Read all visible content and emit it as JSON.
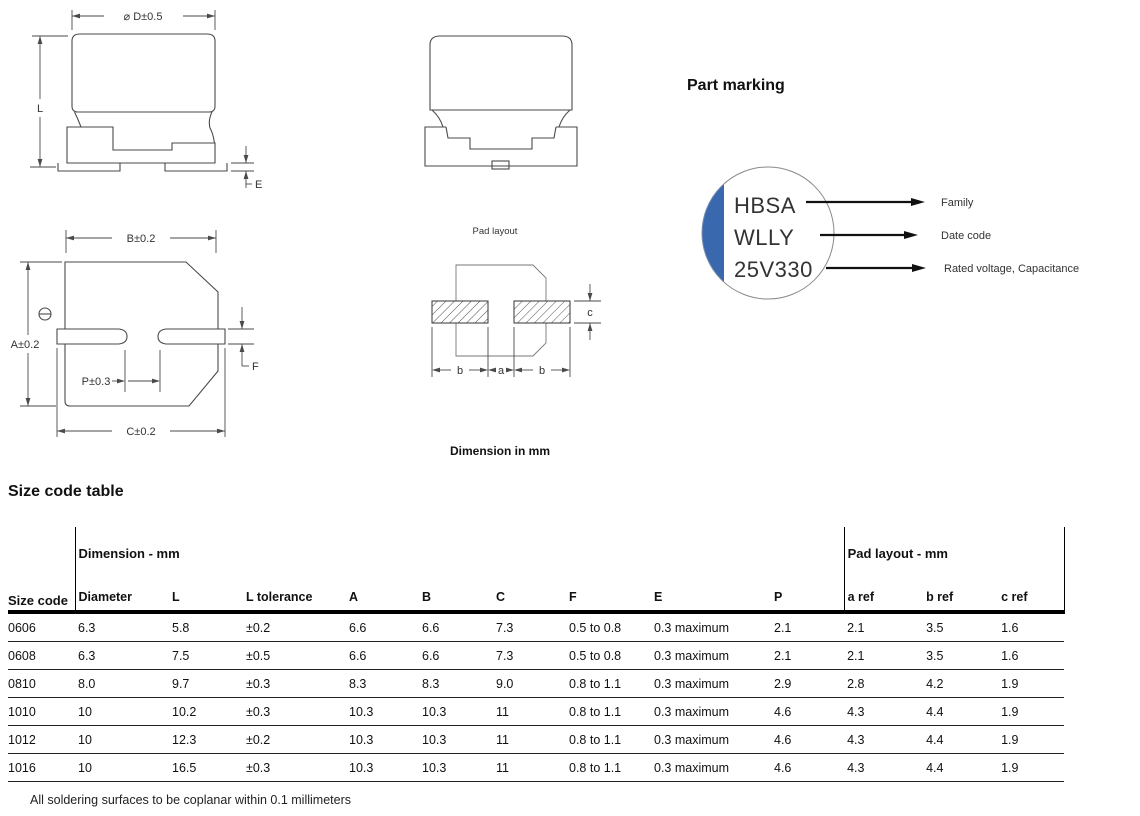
{
  "page": {
    "footnote": "All soldering surfaces to be coplanar within 0.1 millimeters",
    "dimension_note": "Dimension in mm"
  },
  "drawings": {
    "side_view": {
      "dim_diameter": "⌀ D±0.5",
      "dim_length": "L",
      "dim_e": "E"
    },
    "bottom_view": {
      "dim_b": "B±0.2",
      "dim_a": "A±0.2",
      "dim_p": "P±0.3",
      "dim_c": "C±0.2",
      "dim_f": "F",
      "polarity_symbol": "minus-in-circle"
    },
    "pad_layout": {
      "title": "Pad layout",
      "dim_b1": "b",
      "dim_a": "a",
      "dim_b2": "b",
      "dim_c": "c"
    }
  },
  "part_marking": {
    "title": "Part marking",
    "line1": "HBSA",
    "line2": "WLLY",
    "line3": "25V330",
    "callout1": "Family",
    "callout2": "Date code",
    "callout3": "Rated voltage, Capacitance",
    "marking_color": "#3a68ae"
  },
  "size_table": {
    "title": "Size code table",
    "group_dimension": "Dimension - mm",
    "group_pad": "Pad layout - mm",
    "col_size_code": "Size code",
    "columns": [
      "Diameter",
      "L",
      "L tolerance",
      "A",
      "B",
      "C",
      "F",
      "E",
      "P",
      "a ref",
      "b ref",
      "c ref"
    ],
    "rows": [
      [
        "0606",
        "6.3",
        "5.8",
        "±0.2",
        "6.6",
        "6.6",
        "7.3",
        "0.5 to 0.8",
        "0.3 maximum",
        "2.1",
        "2.1",
        "3.5",
        "1.6"
      ],
      [
        "0608",
        "6.3",
        "7.5",
        "±0.5",
        "6.6",
        "6.6",
        "7.3",
        "0.5 to 0.8",
        "0.3 maximum",
        "2.1",
        "2.1",
        "3.5",
        "1.6"
      ],
      [
        "0810",
        "8.0",
        "9.7",
        "±0.3",
        "8.3",
        "8.3",
        "9.0",
        "0.8 to 1.1",
        "0.3 maximum",
        "2.9",
        "2.8",
        "4.2",
        "1.9"
      ],
      [
        "1010",
        "10",
        "10.2",
        "±0.3",
        "10.3",
        "10.3",
        "11",
        "0.8 to 1.1",
        "0.3 maximum",
        "4.6",
        "4.3",
        "4.4",
        "1.9"
      ],
      [
        "1012",
        "10",
        "12.3",
        "±0.2",
        "10.3",
        "10.3",
        "11",
        "0.8 to 1.1",
        "0.3 maximum",
        "4.6",
        "4.3",
        "4.4",
        "1.9"
      ],
      [
        "1016",
        "10",
        "16.5",
        "±0.3",
        "10.3",
        "10.3",
        "11",
        "0.8 to 1.1",
        "0.3 maximum",
        "4.6",
        "4.3",
        "4.4",
        "1.9"
      ]
    ]
  }
}
